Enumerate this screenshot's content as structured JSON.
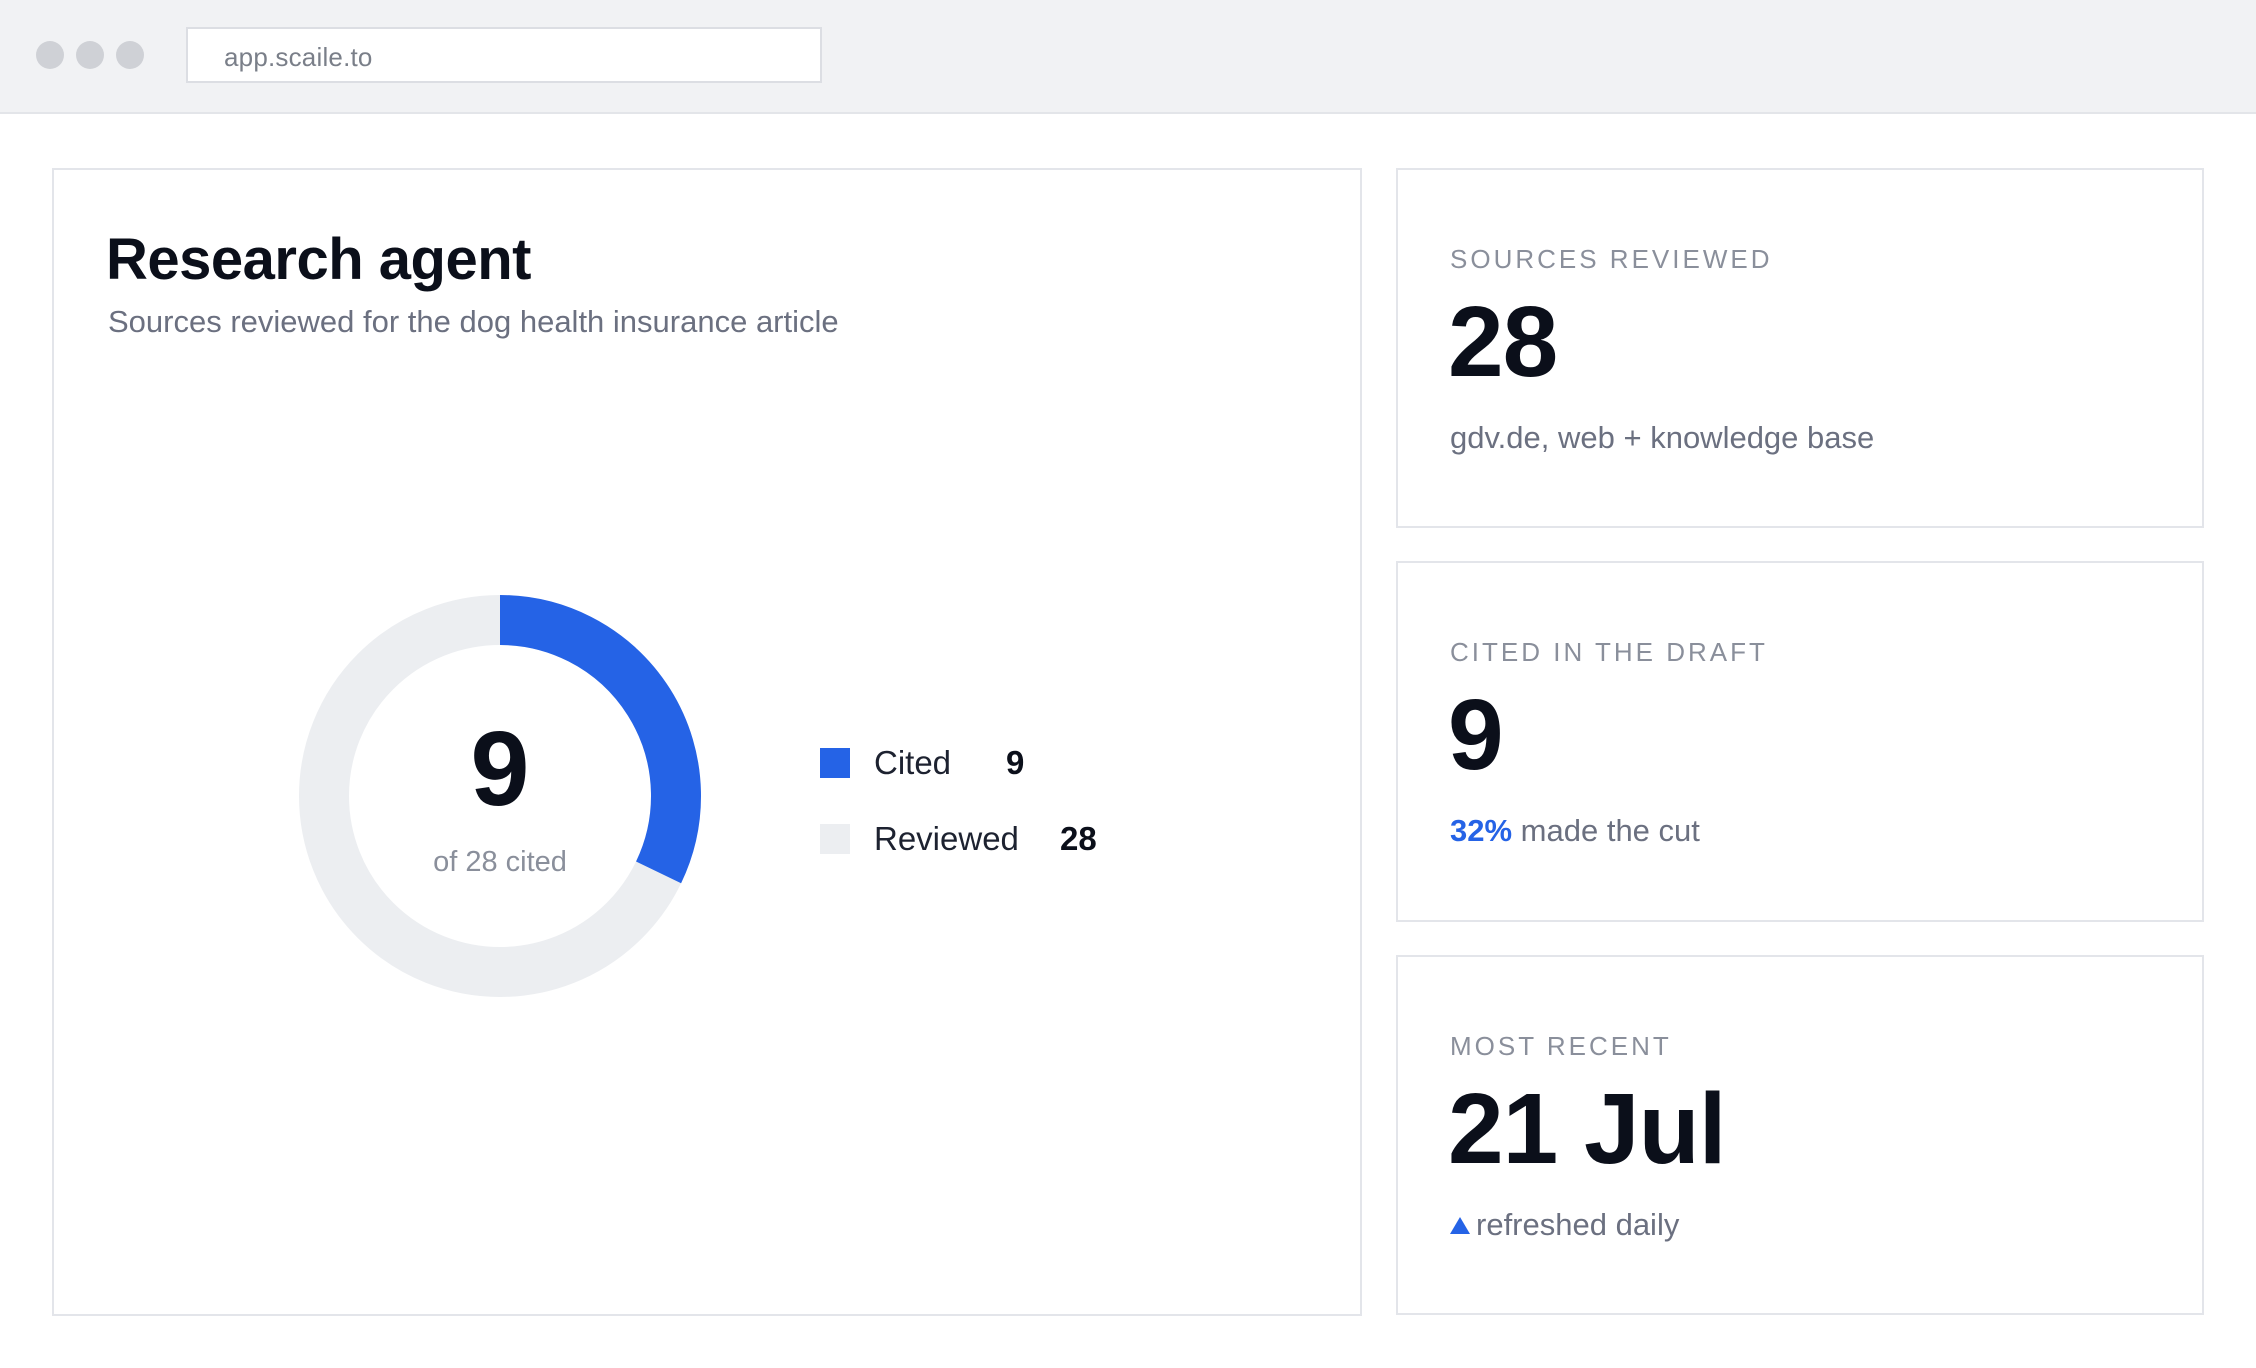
{
  "browser": {
    "url": "app.scaile.to"
  },
  "main": {
    "title": "Research agent",
    "subtitle": "Sources reviewed for the dog health insurance article",
    "center_value": "9",
    "center_label": "of 28 cited",
    "legend": [
      {
        "label": "Cited",
        "value": "9",
        "color": "#2563e6"
      },
      {
        "label": "Reviewed",
        "value": "28",
        "color": "#eceef1"
      }
    ]
  },
  "chart_data": {
    "type": "pie",
    "style": "donut",
    "categories": [
      "Cited",
      "Reviewed"
    ],
    "values": [
      9,
      28
    ],
    "center_text": "9",
    "center_subtext": "of 28 cited",
    "colors": {
      "Cited": "#2563e6",
      "Reviewed": "#eceef1"
    },
    "legend": "right"
  },
  "stats": [
    {
      "label": "SOURCES REVIEWED",
      "value": "28",
      "note": "gdv.de, web + knowledge base"
    },
    {
      "label": "CITED IN THE DRAFT",
      "value": "9",
      "note_highlight": "32%",
      "note": "made the cut"
    },
    {
      "label": "MOST RECENT",
      "value": "21 Jul",
      "note_icon": "triangle-up-icon",
      "note": "refreshed daily"
    }
  ],
  "colors": {
    "accent": "#2563e6",
    "track": "#eceef1"
  }
}
